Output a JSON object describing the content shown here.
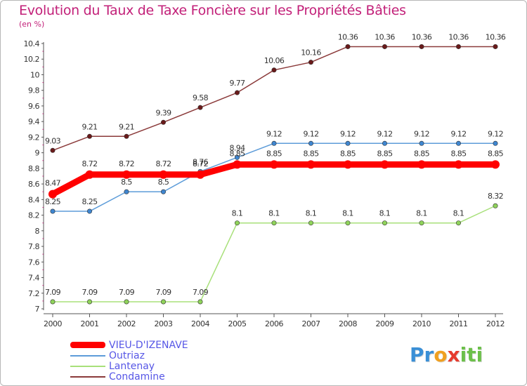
{
  "header": {
    "title": "Evolution du Taux de Taxe Foncière sur les Propriétés Bâties",
    "unit": "(en %)"
  },
  "logo": {
    "letters": [
      {
        "char": "P",
        "color": "#3a8fd6"
      },
      {
        "char": "r",
        "color": "#3a8fd6"
      },
      {
        "char": "o",
        "color": "#f0a020"
      },
      {
        "char": "x",
        "color": "#e63b2e"
      },
      {
        "char": "i",
        "color": "#6cc04a"
      },
      {
        "char": "t",
        "color": "#6cc04a"
      },
      {
        "char": "i",
        "color": "#6cc04a"
      }
    ]
  },
  "chart_data": {
    "type": "line",
    "title": "Evolution du Taux de Taxe Foncière sur les Propriétés Bâties",
    "ylabel": "(en %)",
    "xlabel": "",
    "x": [
      "2000",
      "2001",
      "2002",
      "2003",
      "2004",
      "2005",
      "2006",
      "2007",
      "2008",
      "2009",
      "2010",
      "2011",
      "2012"
    ],
    "ylim": [
      7,
      10.4
    ],
    "yticks": [
      "7",
      "7.2",
      "7.4",
      "7.6",
      "7.8",
      "8",
      "8.2",
      "8.4",
      "8.6",
      "8.8",
      "9",
      "9.2",
      "9.4",
      "9.6",
      "9.8",
      "10",
      "10.2",
      "10.4"
    ],
    "grid": false,
    "legend_position": "bottom-left",
    "series": [
      {
        "name": "VIEU-D'IZENAVE",
        "color": "#ff0000",
        "bold": true,
        "values": [
          8.47,
          8.72,
          8.72,
          8.72,
          8.72,
          8.85,
          8.85,
          8.85,
          8.85,
          8.85,
          8.85,
          8.85,
          8.85
        ],
        "labels": [
          "8.47",
          "8.72",
          "8.72",
          "8.72",
          "8.72",
          "8.85",
          "8.85",
          "8.85",
          "8.85",
          "8.85",
          "8.85",
          "8.85",
          "8.85"
        ]
      },
      {
        "name": "Outriaz",
        "color": "#5d9cd9",
        "marker_fill": "#3f86d0",
        "values": [
          8.25,
          8.25,
          8.5,
          8.5,
          8.76,
          8.94,
          9.12,
          9.12,
          9.12,
          9.12,
          9.12,
          9.12,
          9.12
        ],
        "labels": [
          "8.25",
          "8.25",
          "8.5",
          "8.5",
          "8.76",
          "8.94",
          "9.12",
          "9.12",
          "9.12",
          "9.12",
          "9.12",
          "9.12",
          "9.12"
        ]
      },
      {
        "name": "Lantenay",
        "color": "#a8e07a",
        "marker_fill": "#8fd35a",
        "values": [
          7.09,
          7.09,
          7.09,
          7.09,
          7.09,
          8.1,
          8.1,
          8.1,
          8.1,
          8.1,
          8.1,
          8.1,
          8.32
        ],
        "labels": [
          "7.09",
          "7.09",
          "7.09",
          "7.09",
          "7.09",
          "8.1",
          "8.1",
          "8.1",
          "8.1",
          "8.1",
          "8.1",
          "8.1",
          "8.32"
        ]
      },
      {
        "name": "Condamine",
        "color": "#8b3a3a",
        "marker_fill": "#6a1a1a",
        "values": [
          9.03,
          9.21,
          9.21,
          9.39,
          9.58,
          9.77,
          10.06,
          10.16,
          10.36,
          10.36,
          10.36,
          10.36,
          10.36
        ],
        "labels": [
          "9.03",
          "9.21",
          "9.21",
          "9.39",
          "9.58",
          "9.77",
          "10.06",
          "10.16",
          "10.36",
          "10.36",
          "10.36",
          "10.36",
          "10.36"
        ]
      }
    ]
  }
}
